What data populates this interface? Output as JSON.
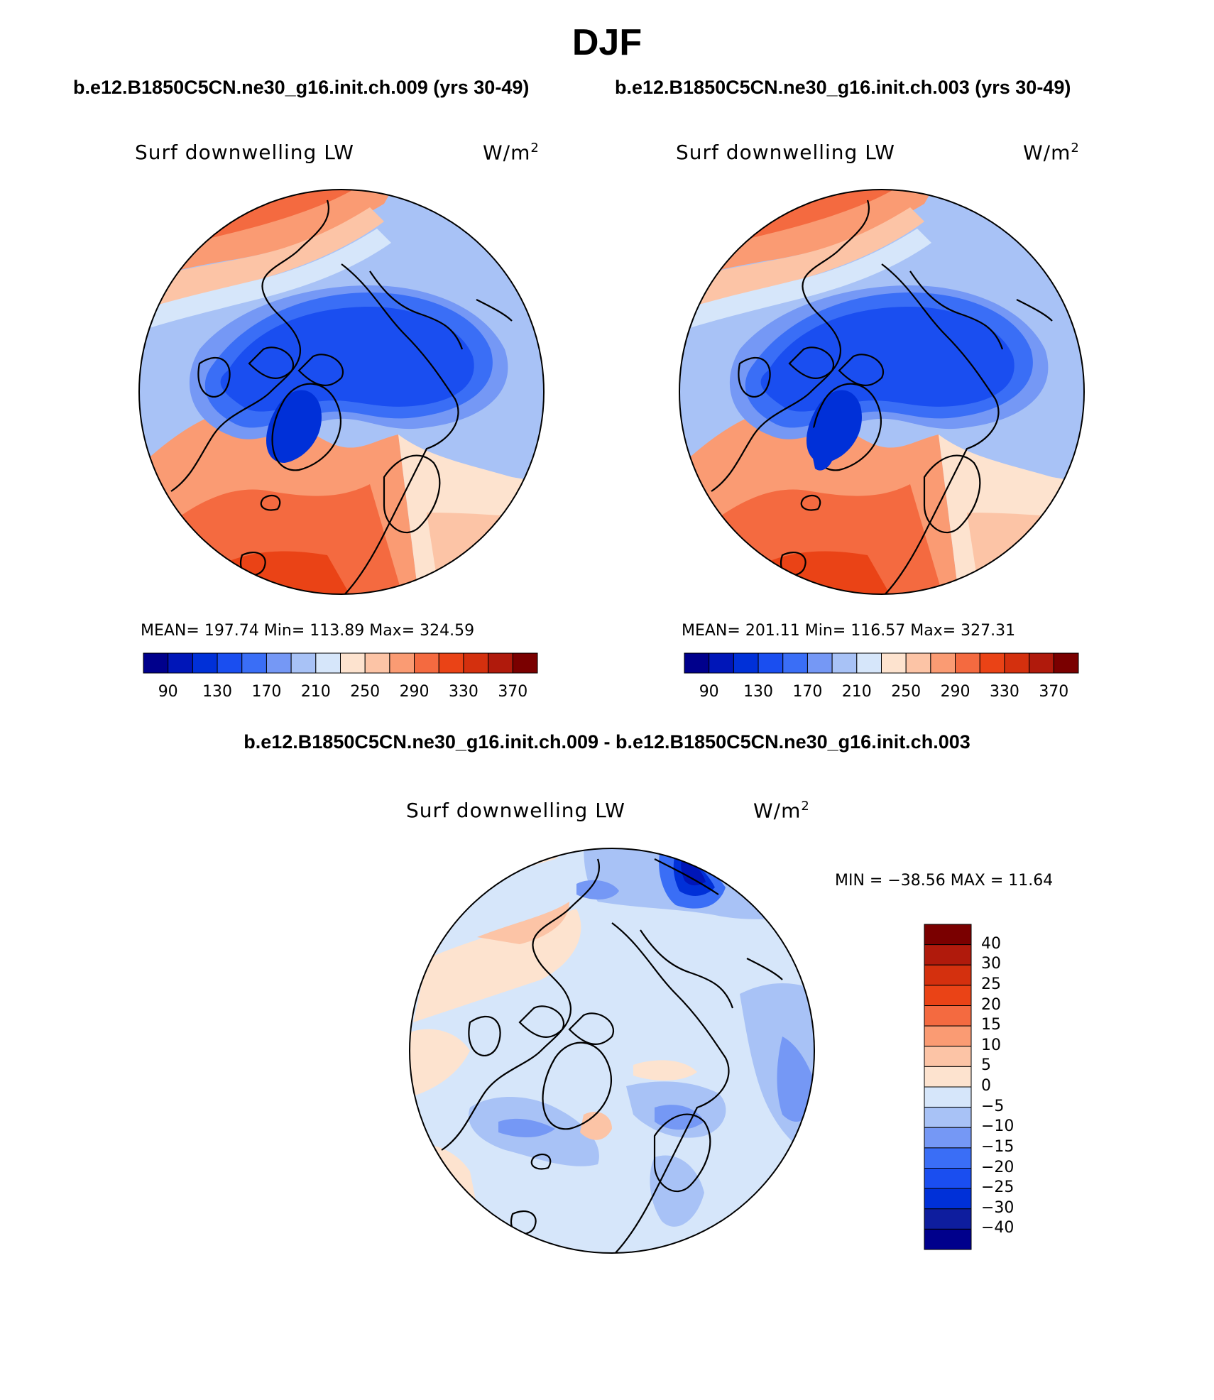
{
  "figure": {
    "season": "DJF",
    "case_a": "b.e12.B1850C5CN.ne30_g16.init.ch.009 (yrs 30-49)",
    "case_b": "b.e12.B1850C5CN.ne30_g16.init.ch.003 (yrs 30-49)",
    "difference_title": "b.e12.B1850C5CN.ne30_g16.init.ch.009 - b.e12.B1850C5CN.ne30_g16.init.ch.003"
  },
  "panels": [
    {
      "variable": "Surf downwelling LW",
      "units_base": "W/m",
      "units_exp": "2",
      "stats": "MEAN= 197.74   Min= 113.89   Max= 324.59"
    },
    {
      "variable": "Surf downwelling LW",
      "units_base": "W/m",
      "units_exp": "2",
      "stats": "MEAN= 201.11   Min= 116.57   Max= 327.31"
    },
    {
      "variable": "Surf downwelling LW",
      "units_base": "W/m",
      "units_exp": "2",
      "stats": "MIN = −38.56 MAX =   11.64"
    }
  ],
  "colorbar_main": {
    "colors": [
      "#00008c",
      "#0016b8",
      "#0030d8",
      "#1a4ef0",
      "#3a6ef6",
      "#7598f5",
      "#a8c2f6",
      "#d6e6fa",
      "#fde3cf",
      "#fcc4a6",
      "#fa9b73",
      "#f46a40",
      "#ea4316",
      "#d4300e",
      "#b01a0c",
      "#7a0000"
    ],
    "labels": [
      "90",
      "130",
      "170",
      "210",
      "250",
      "290",
      "330",
      "370"
    ]
  },
  "colorbar_diff": {
    "colors": [
      "#00008c",
      "#0e1d9e",
      "#0030d8",
      "#1a4ef0",
      "#3a6ef6",
      "#7598f5",
      "#a8c2f6",
      "#d6e6fa",
      "#fde3cf",
      "#fcc4a6",
      "#fa9b73",
      "#f46a40",
      "#ea4316",
      "#d4300e",
      "#b01a0c",
      "#7a0000"
    ],
    "labels": [
      "−40",
      "−30",
      "−25",
      "−20",
      "−15",
      "−10",
      "−5",
      "0",
      "5",
      "10",
      "15",
      "20",
      "25",
      "30",
      "40"
    ]
  },
  "region": "Northern Hemisphere polar stereographic"
}
